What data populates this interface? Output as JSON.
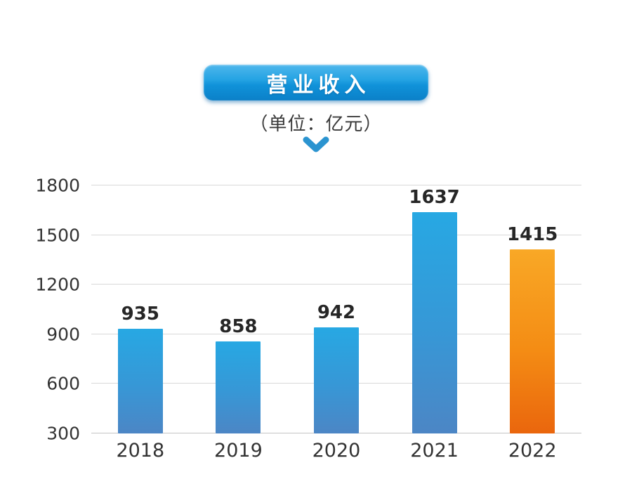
{
  "header": {
    "title": "营业收入",
    "subtitle": "（单位：亿元）"
  },
  "colors": {
    "badge_blue_top": "#4fb7ec",
    "badge_blue_bottom": "#0b80c8",
    "chevron_blue": "#2b94d0",
    "bar_blue_top": "#27a8e3",
    "bar_blue_bottom": "#4c86c5",
    "bar_orange_top": "#f9a826",
    "bar_orange_bottom": "#ea660d",
    "gridline_gray": "#d8d8d8",
    "label_dark": "#262626"
  },
  "chart_data": {
    "type": "bar",
    "title": "营业收入",
    "unit_label": "（单位：亿元）",
    "categories": [
      "2018",
      "2019",
      "2020",
      "2021",
      "2022"
    ],
    "values": [
      935,
      858,
      942,
      1637,
      1415
    ],
    "bar_styles": [
      "blue",
      "blue",
      "blue",
      "blue",
      "orange"
    ],
    "xlabel": "",
    "ylabel": "",
    "ylim": [
      300,
      1800
    ],
    "yticks": [
      300,
      600,
      900,
      1200,
      1500,
      1800
    ],
    "grid": "horizontal",
    "legend": "none"
  }
}
